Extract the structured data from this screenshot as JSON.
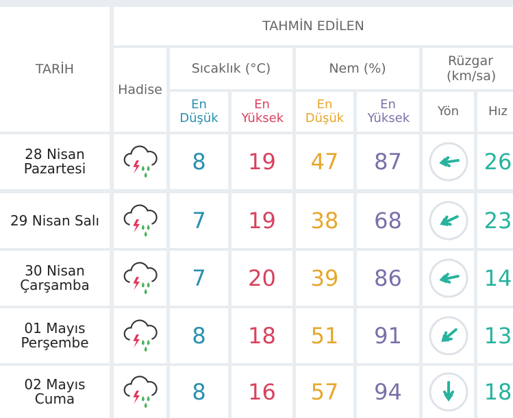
{
  "header": {
    "date": "TARİH",
    "main": "TAHMİN EDİLEN",
    "event": "Hadise",
    "temp": "Sıcaklık (°C)",
    "humidity": "Nem (%)",
    "wind": "Rüzgar (km/sa)",
    "temp_min": "En Düşük",
    "temp_max": "En Yüksek",
    "hum_min": "En Düşük",
    "hum_max": "En Yüksek",
    "direction": "Yön",
    "speed": "Hız"
  },
  "rows": [
    {
      "date": "28 Nisan Pazartesi",
      "temp_min": 8,
      "temp_max": 19,
      "hum_min": 47,
      "hum_max": 87,
      "speed": 26
    },
    {
      "date": "29 Nisan Salı",
      "temp_min": 7,
      "temp_max": 19,
      "hum_min": 38,
      "hum_max": 68,
      "speed": 23
    },
    {
      "date": "30 Nisan Çarşamba",
      "temp_min": 7,
      "temp_max": 20,
      "hum_min": 39,
      "hum_max": 86,
      "speed": 14
    },
    {
      "date": "01 Mayıs Perşembe",
      "temp_min": 8,
      "temp_max": 18,
      "hum_min": 51,
      "hum_max": 91,
      "speed": 13
    },
    {
      "date": "02 Mayıs Cuma",
      "temp_min": 8,
      "temp_max": 16,
      "hum_min": 57,
      "hum_max": 94,
      "speed": 18
    }
  ]
}
